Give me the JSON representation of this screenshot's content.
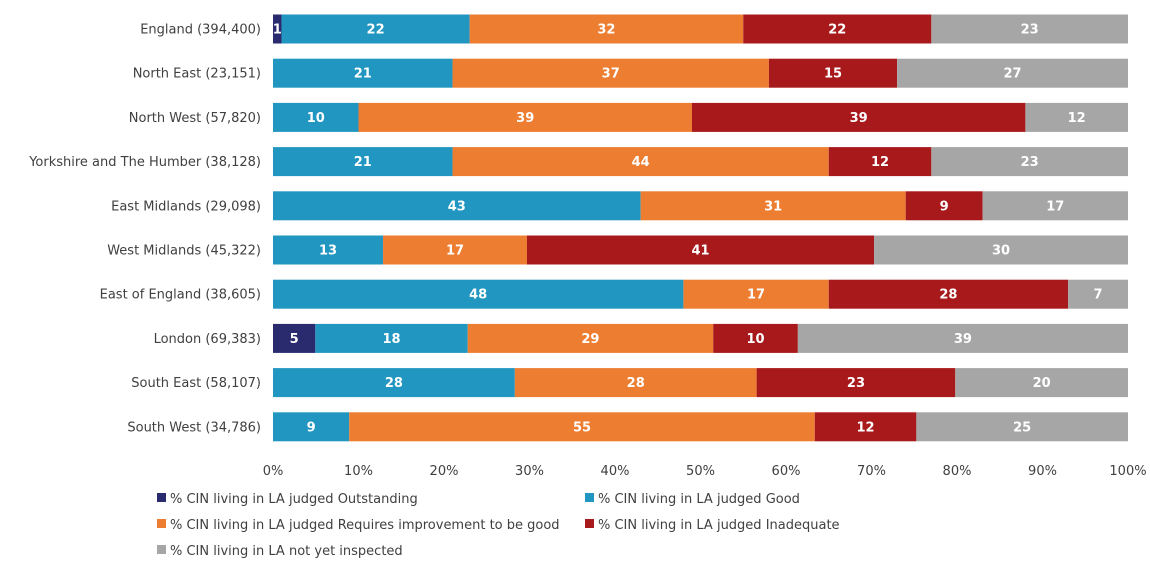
{
  "chart_data": {
    "type": "bar",
    "orientation": "horizontal",
    "stacked": "percent",
    "title": "",
    "xlabel": "",
    "ylabel": "",
    "xlim": [
      0,
      100
    ],
    "x_ticks": [
      "0%",
      "10%",
      "20%",
      "30%",
      "40%",
      "50%",
      "60%",
      "70%",
      "80%",
      "90%",
      "100%"
    ],
    "grid": false,
    "legend_position": "bottom",
    "categories": [
      "England (394,400)",
      "North East (23,151)",
      "North West (57,820)",
      "Yorkshire and The Humber (38,128)",
      "East Midlands (29,098)",
      "West Midlands (45,322)",
      "East of England (38,605)",
      "London (69,383)",
      "South East (58,107)",
      "South West (34,786)"
    ],
    "series": [
      {
        "name": "% CIN living in LA judged Outstanding",
        "color": "#2a2a6e",
        "values": [
          1,
          0,
          0,
          0,
          0,
          0,
          0,
          5,
          0,
          0
        ]
      },
      {
        "name": "% CIN living in LA judged Good",
        "color": "#2196c0",
        "values": [
          22,
          21,
          10,
          21,
          43,
          13,
          48,
          18,
          28,
          9
        ]
      },
      {
        "name": "% CIN living in LA judged Requires improvement to be good",
        "color": "#ed7d31",
        "values": [
          32,
          37,
          39,
          44,
          31,
          17,
          17,
          29,
          28,
          55
        ]
      },
      {
        "name": "% CIN living in LA judged Inadequate",
        "color": "#a8191c",
        "values": [
          22,
          15,
          39,
          12,
          9,
          41,
          28,
          10,
          23,
          12
        ]
      },
      {
        "name": "% CIN living in LA not yet inspected",
        "color": "#a6a6a6",
        "values": [
          23,
          27,
          12,
          23,
          17,
          30,
          7,
          39,
          20,
          25
        ]
      }
    ]
  }
}
